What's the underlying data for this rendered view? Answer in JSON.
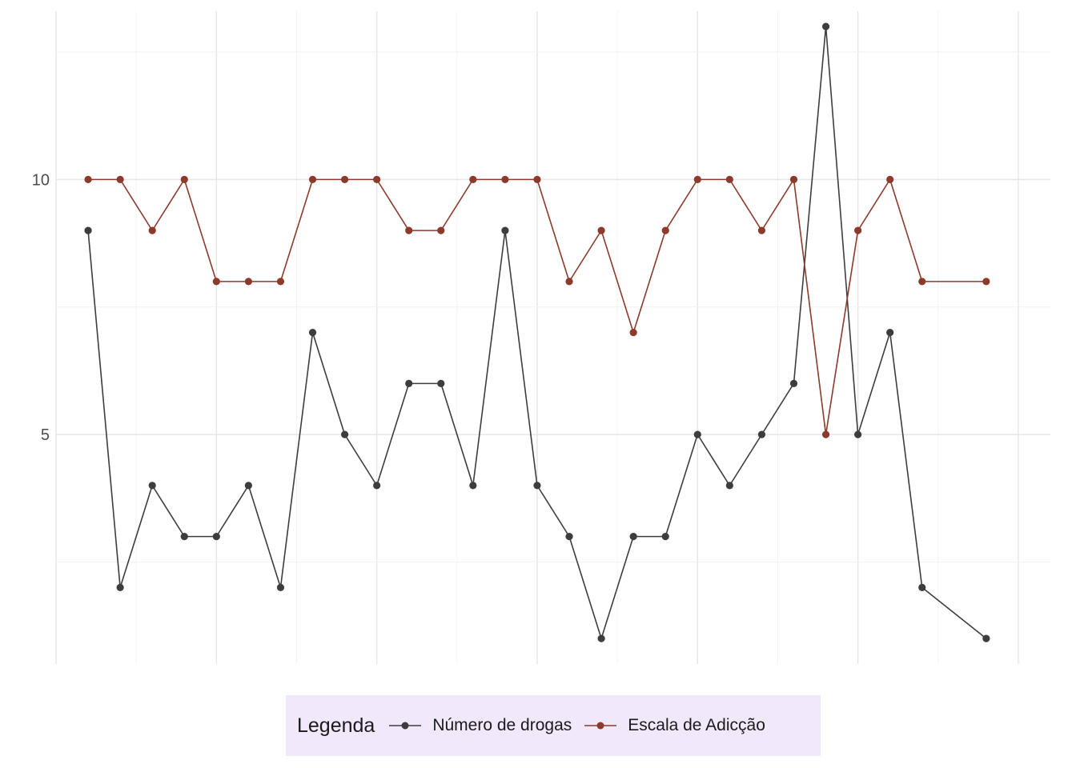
{
  "chart_data": {
    "type": "line",
    "title": "",
    "xlabel": "",
    "ylabel": "",
    "x": [
      1,
      2,
      3,
      4,
      5,
      6,
      7,
      8,
      9,
      10,
      11,
      12,
      13,
      14,
      15,
      16,
      17,
      18,
      19,
      20,
      21,
      22,
      23,
      24,
      25,
      26,
      27,
      28,
      29
    ],
    "xlim": [
      0,
      31
    ],
    "ylim": [
      0.5,
      13.3
    ],
    "yticks": [
      5,
      10
    ],
    "grid": true,
    "legend": {
      "title": "Legenda",
      "position": "bottom"
    },
    "series": [
      {
        "name": "Número de drogas",
        "color": "#3d3d3d",
        "values": [
          9,
          2,
          4,
          3,
          3,
          4,
          2,
          7,
          5,
          4,
          6,
          6,
          4,
          9,
          4,
          3,
          1,
          3,
          3,
          5,
          4,
          5,
          6,
          13,
          5,
          7,
          2,
          null,
          1
        ]
      },
      {
        "name": "Escala de Adicção",
        "color": "#8b3a2b",
        "values": [
          10,
          10,
          9,
          10,
          8,
          8,
          8,
          10,
          10,
          10,
          9,
          9,
          10,
          10,
          10,
          8,
          9,
          7,
          9,
          10,
          10,
          9,
          10,
          5,
          9,
          10,
          8,
          null,
          8
        ]
      }
    ]
  }
}
